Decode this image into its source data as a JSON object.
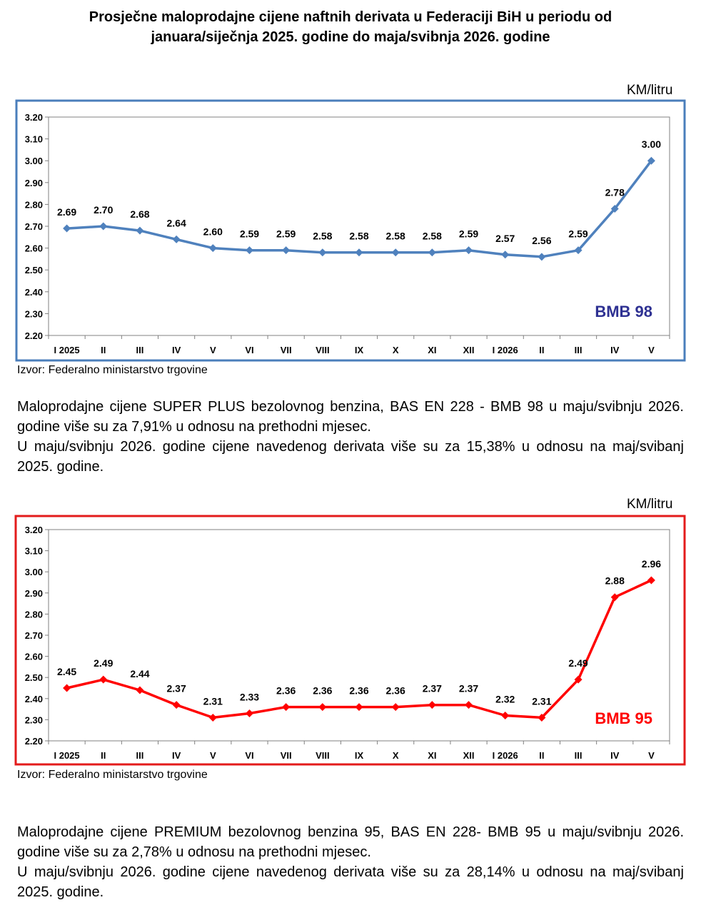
{
  "title_line1": "Prosječne maloprodajne cijene naftnih derivata u Federaciji BiH u periodu od",
  "title_line2": "januara/siječnja 2025. godine do maja/svibnja 2026. godine",
  "unit_label": "KM/litru",
  "source": "Izvor: Federalno ministarstvo trgovine",
  "chart_data": [
    {
      "type": "line",
      "categories": [
        "I 2025",
        "II",
        "III",
        "IV",
        "V",
        "VI",
        "VII",
        "VIII",
        "IX",
        "X",
        "XI",
        "XII",
        "I 2026",
        "II",
        "III",
        "IV",
        "V"
      ],
      "series": [
        {
          "name": "BMB 98",
          "values": [
            2.69,
            2.7,
            2.68,
            2.64,
            2.6,
            2.59,
            2.59,
            2.58,
            2.58,
            2.58,
            2.58,
            2.59,
            2.57,
            2.56,
            2.59,
            2.78,
            3.0
          ]
        }
      ],
      "data_labels": [
        "2.69",
        "2.70",
        "2.68",
        "2.64",
        "2.60",
        "2.59",
        "2.59",
        "2.58",
        "2.58",
        "2.58",
        "2.58",
        "2.59",
        "2.57",
        "2.56",
        "2.59",
        "2.78",
        "3.00"
      ],
      "yticks": [
        "3.20",
        "3.10",
        "3.00",
        "2.90",
        "2.80",
        "2.70",
        "2.60",
        "2.50",
        "2.40",
        "2.30",
        "2.20"
      ],
      "ylim": [
        2.2,
        3.2
      ],
      "label": "BMB 98",
      "color": "#4F81BD",
      "label_color": "#2E3192",
      "frame_color": "#4A7EBB",
      "legend": "bottom-right"
    },
    {
      "type": "line",
      "categories": [
        "I 2025",
        "II",
        "III",
        "IV",
        "V",
        "VI",
        "VII",
        "VIII",
        "IX",
        "X",
        "XI",
        "XII",
        "I 2026",
        "II",
        "III",
        "IV",
        "V"
      ],
      "series": [
        {
          "name": "BMB 95",
          "values": [
            2.45,
            2.49,
            2.44,
            2.37,
            2.31,
            2.33,
            2.36,
            2.36,
            2.36,
            2.36,
            2.37,
            2.37,
            2.32,
            2.31,
            2.49,
            2.88,
            2.96
          ]
        }
      ],
      "data_labels": [
        "2.45",
        "2.49",
        "2.44",
        "2.37",
        "2.31",
        "2.33",
        "2.36",
        "2.36",
        "2.36",
        "2.36",
        "2.37",
        "2.37",
        "2.32",
        "2.31",
        "2.49",
        "2.88",
        "2.96"
      ],
      "yticks": [
        "3.20",
        "3.10",
        "3.00",
        "2.90",
        "2.80",
        "2.70",
        "2.60",
        "2.50",
        "2.40",
        "2.30",
        "2.20"
      ],
      "ylim": [
        2.2,
        3.2
      ],
      "label": "BMB 95",
      "color": "#FF0000",
      "label_color": "#FF0000",
      "frame_color": "#E31B1B",
      "legend": "bottom-right"
    }
  ],
  "para1": [
    "Maloprodajne cijene SUPER PLUS bezolovnog benzina, BAS EN 228 - BMB 98 u maju/svibnju 2026. godine više su za 7,91% u odnosu na prethodni mjesec.",
    "U maju/svibnju 2026. godine cijene navedenog derivata više su za 15,38% u odnosu na maj/svibanj 2025. godine."
  ],
  "para2": [
    "Maloprodajne cijene PREMIUM bezolovnog benzina 95, BAS EN 228- BMB 95 u maju/svibnju 2026. godine više su za 2,78% u odnosu na prethodni mjesec.",
    "U maju/svibnju 2026. godine cijene navedenog derivata više su za 28,14% u odnosu na maj/svibanj 2025. godine."
  ]
}
